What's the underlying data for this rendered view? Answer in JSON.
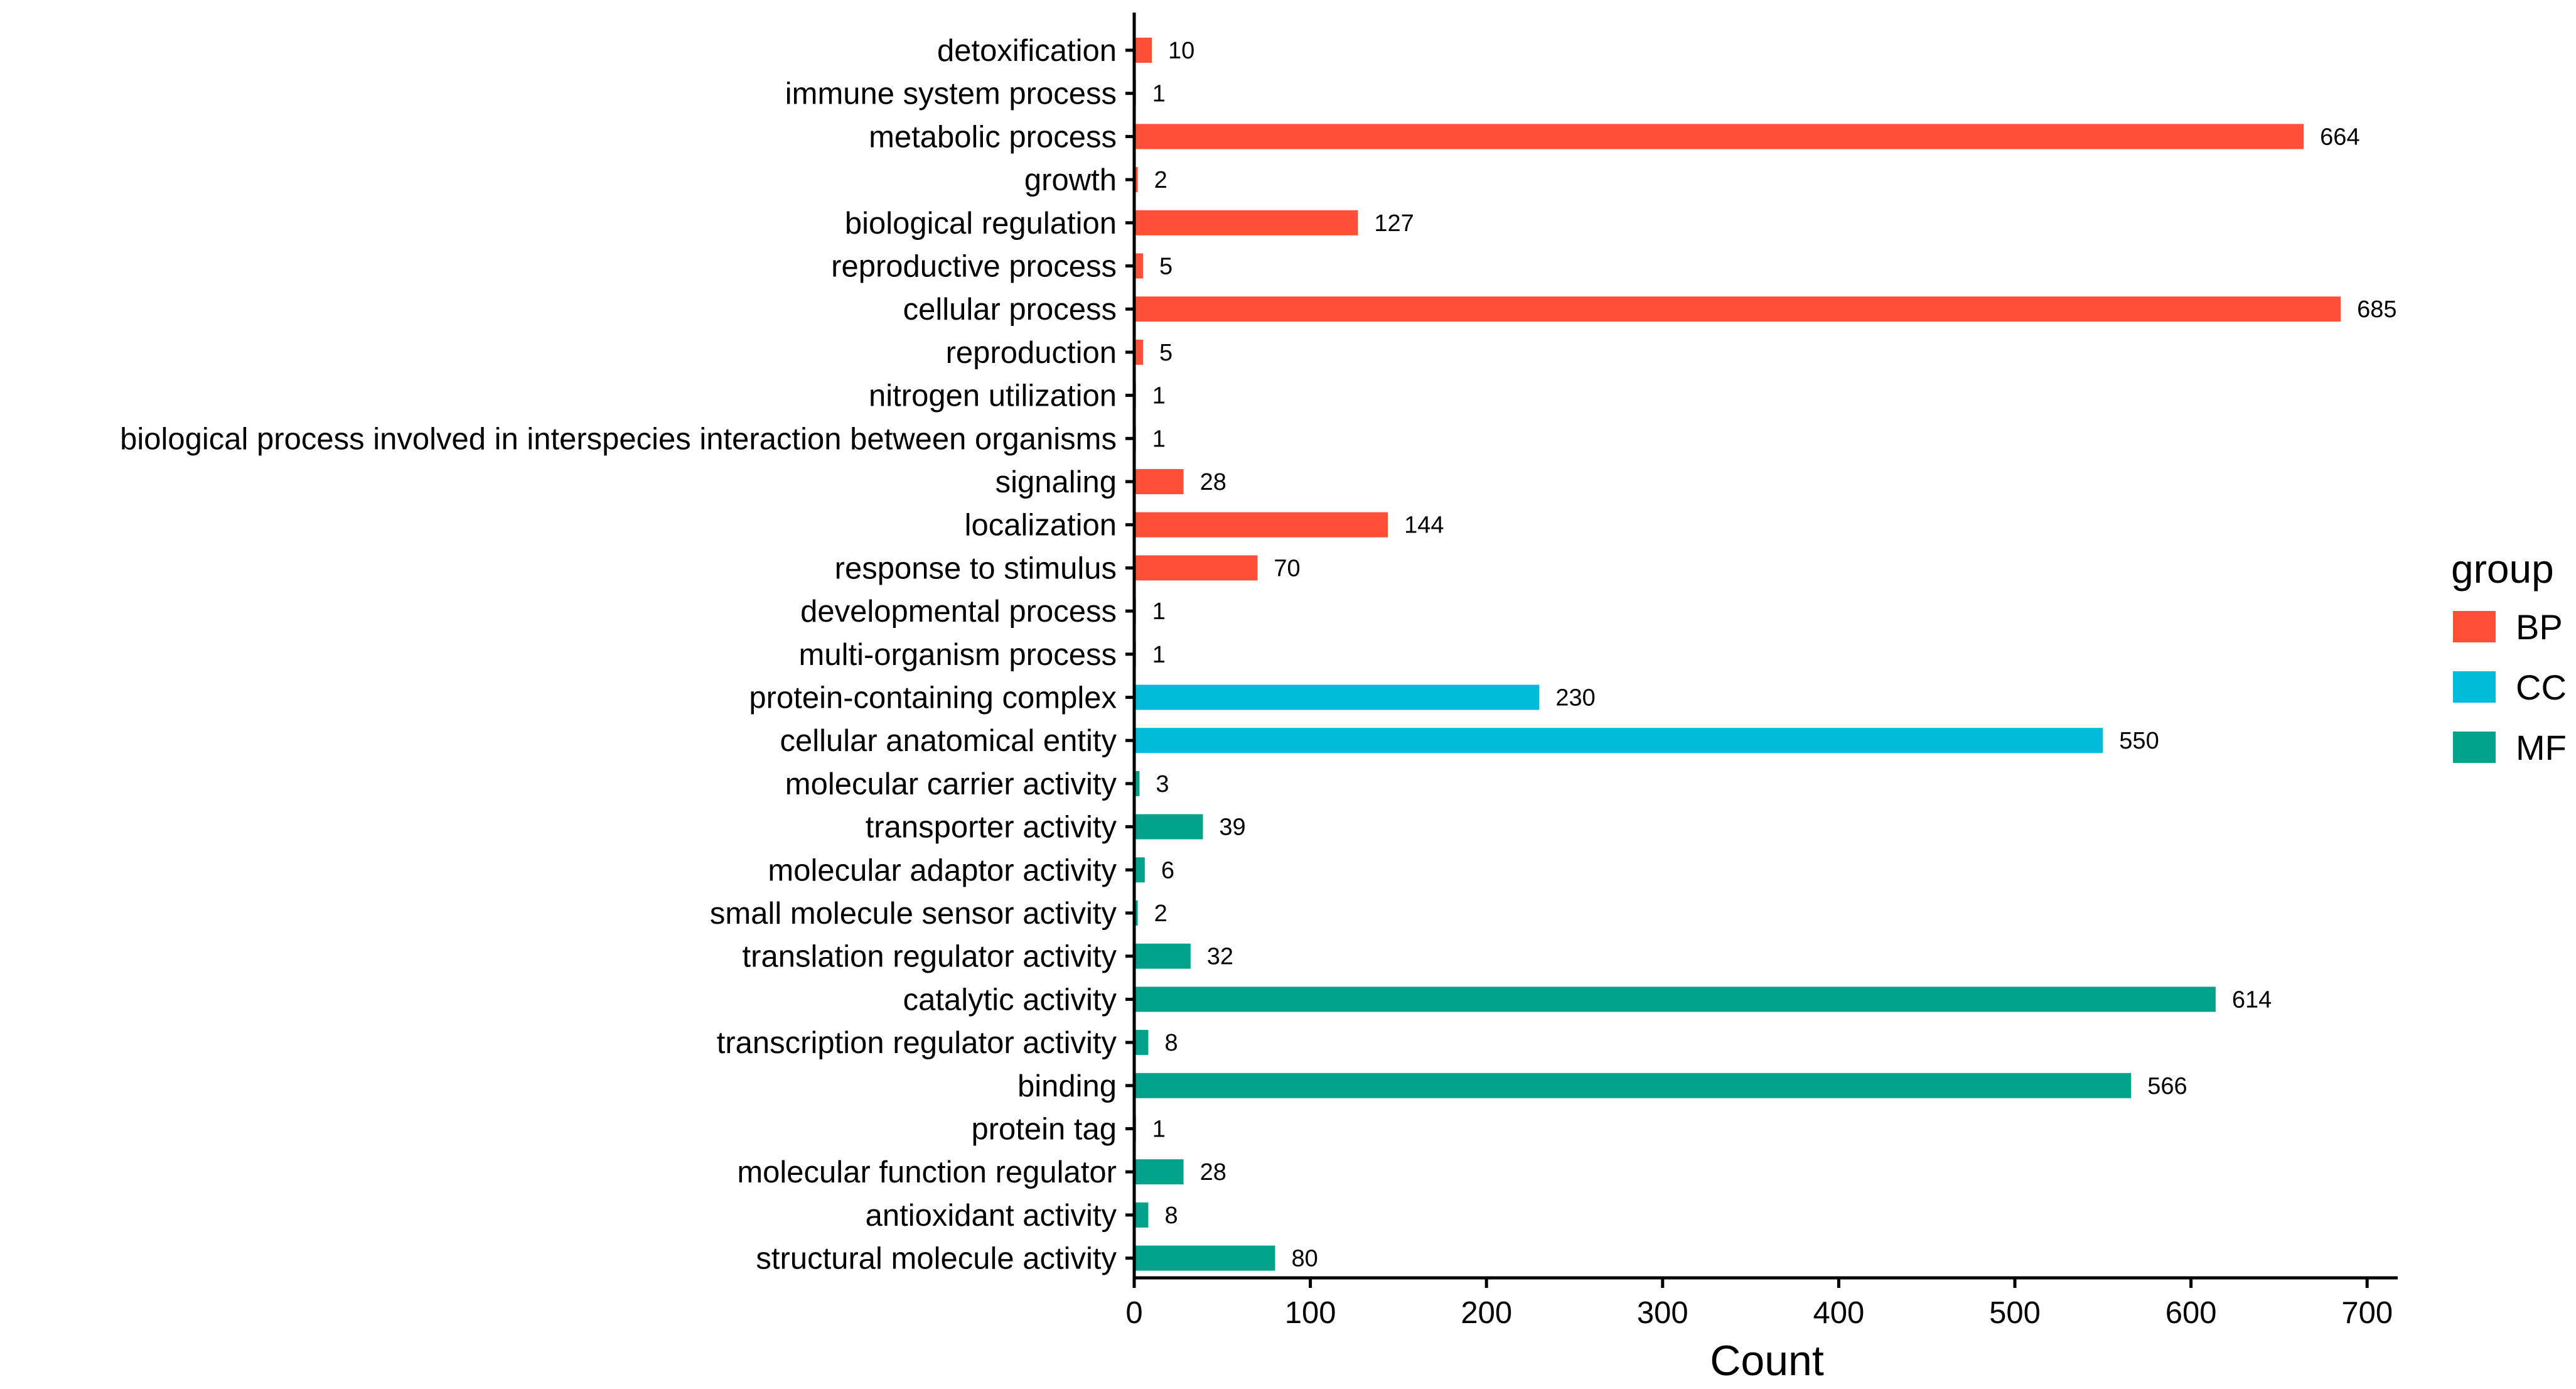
{
  "chart_data": {
    "type": "bar",
    "orientation": "horizontal",
    "title": "",
    "xlabel": "Count",
    "ylabel": "",
    "xlim": [
      0,
      720
    ],
    "xticks": [
      0,
      100,
      200,
      300,
      400,
      500,
      600,
      700
    ],
    "grid": false,
    "legend": {
      "title": "group",
      "placement": "right",
      "entries": [
        {
          "name": "BP",
          "color": "#FF4F36"
        },
        {
          "name": "CC",
          "color": "#00BCD9"
        },
        {
          "name": "MF",
          "color": "#00A389"
        }
      ]
    },
    "bars": [
      {
        "label": "detoxification",
        "value": 10,
        "group": "BP"
      },
      {
        "label": "immune system process",
        "value": 1,
        "group": "BP"
      },
      {
        "label": "metabolic process",
        "value": 664,
        "group": "BP"
      },
      {
        "label": "growth",
        "value": 2,
        "group": "BP"
      },
      {
        "label": "biological regulation",
        "value": 127,
        "group": "BP"
      },
      {
        "label": "reproductive process",
        "value": 5,
        "group": "BP"
      },
      {
        "label": "cellular process",
        "value": 685,
        "group": "BP"
      },
      {
        "label": "reproduction",
        "value": 5,
        "group": "BP"
      },
      {
        "label": "nitrogen utilization",
        "value": 1,
        "group": "BP"
      },
      {
        "label": "biological process involved in interspecies interaction between organisms",
        "value": 1,
        "group": "BP"
      },
      {
        "label": "signaling",
        "value": 28,
        "group": "BP"
      },
      {
        "label": "localization",
        "value": 144,
        "group": "BP"
      },
      {
        "label": "response to stimulus",
        "value": 70,
        "group": "BP"
      },
      {
        "label": "developmental process",
        "value": 1,
        "group": "BP"
      },
      {
        "label": "multi-organism process",
        "value": 1,
        "group": "BP"
      },
      {
        "label": "protein-containing complex",
        "value": 230,
        "group": "CC"
      },
      {
        "label": "cellular anatomical entity",
        "value": 550,
        "group": "CC"
      },
      {
        "label": "molecular carrier activity",
        "value": 3,
        "group": "MF"
      },
      {
        "label": "transporter activity",
        "value": 39,
        "group": "MF"
      },
      {
        "label": "molecular adaptor activity",
        "value": 6,
        "group": "MF"
      },
      {
        "label": "small molecule sensor activity",
        "value": 2,
        "group": "MF"
      },
      {
        "label": "translation regulator activity",
        "value": 32,
        "group": "MF"
      },
      {
        "label": "catalytic activity",
        "value": 614,
        "group": "MF"
      },
      {
        "label": "transcription regulator activity",
        "value": 8,
        "group": "MF"
      },
      {
        "label": "binding",
        "value": 566,
        "group": "MF"
      },
      {
        "label": "protein tag",
        "value": 1,
        "group": "MF"
      },
      {
        "label": "molecular function regulator",
        "value": 28,
        "group": "MF"
      },
      {
        "label": "antioxidant activity",
        "value": 8,
        "group": "MF"
      },
      {
        "label": "structural molecule activity",
        "value": 80,
        "group": "MF"
      }
    ]
  }
}
